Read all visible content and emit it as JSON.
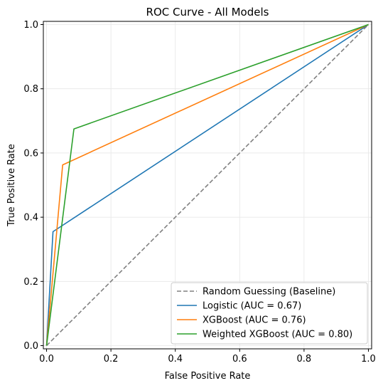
{
  "chart_data": {
    "type": "line",
    "title": "ROC Curve - All Models",
    "xlabel": "False Positive Rate",
    "ylabel": "True Positive Rate",
    "xlim": [
      -0.01,
      1.01
    ],
    "ylim": [
      -0.01,
      1.01
    ],
    "xticks": [
      "0.0",
      "0.2",
      "0.4",
      "0.6",
      "0.8",
      "1.0"
    ],
    "yticks": [
      "0.0",
      "0.2",
      "0.4",
      "0.6",
      "0.8",
      "1.0"
    ],
    "grid": true,
    "legend_position": "lower right",
    "series": [
      {
        "name": "Random Guessing (Baseline)",
        "color": "#808080",
        "dash": true,
        "x": [
          0,
          1
        ],
        "y": [
          0,
          1
        ]
      },
      {
        "name": "Logistic (AUC = 0.67)",
        "color": "#1f77b4",
        "dash": false,
        "x": [
          0,
          0.02,
          1
        ],
        "y": [
          0,
          0.355,
          1
        ]
      },
      {
        "name": "XGBoost (AUC = 0.76)",
        "color": "#ff7f0e",
        "dash": false,
        "x": [
          0,
          0.05,
          1
        ],
        "y": [
          0,
          0.563,
          1
        ]
      },
      {
        "name": "Weighted XGBoost (AUC = 0.80)",
        "color": "#2ca02c",
        "dash": false,
        "x": [
          0,
          0.085,
          1
        ],
        "y": [
          0,
          0.675,
          1
        ]
      }
    ]
  }
}
